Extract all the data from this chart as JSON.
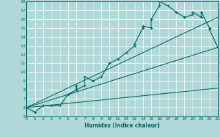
{
  "title": "",
  "xlabel": "Humidex (Indice chaleur)",
  "bg_color": "#b0d8d8",
  "grid_color": "#ffffff",
  "line_color": "#006666",
  "xmin": 0,
  "xmax": 23,
  "ymin": 5,
  "ymax": 18,
  "main_x": [
    0,
    1,
    2,
    3,
    4,
    5,
    6,
    6,
    6,
    7,
    7,
    8,
    9,
    10,
    11,
    12,
    13,
    13,
    14,
    14,
    15,
    15,
    16,
    16,
    17,
    18,
    19,
    20,
    20,
    21,
    21,
    22,
    22,
    23
  ],
  "main_y": [
    6.0,
    5.5,
    6.2,
    6.2,
    6.2,
    7.5,
    8.0,
    8.5,
    8.0,
    8.5,
    9.5,
    9.0,
    9.5,
    11.0,
    11.5,
    12.2,
    13.0,
    13.2,
    15.0,
    15.2,
    15.0,
    16.0,
    17.5,
    18.0,
    17.5,
    16.8,
    16.2,
    16.5,
    16.8,
    16.2,
    16.8,
    15.0,
    14.8,
    12.8
  ],
  "ref_lines": [
    {
      "x": [
        0,
        23
      ],
      "y": [
        6.0,
        12.8
      ]
    },
    {
      "x": [
        0,
        23
      ],
      "y": [
        6.0,
        16.2
      ]
    },
    {
      "x": [
        0,
        23
      ],
      "y": [
        6.0,
        8.2
      ]
    }
  ]
}
